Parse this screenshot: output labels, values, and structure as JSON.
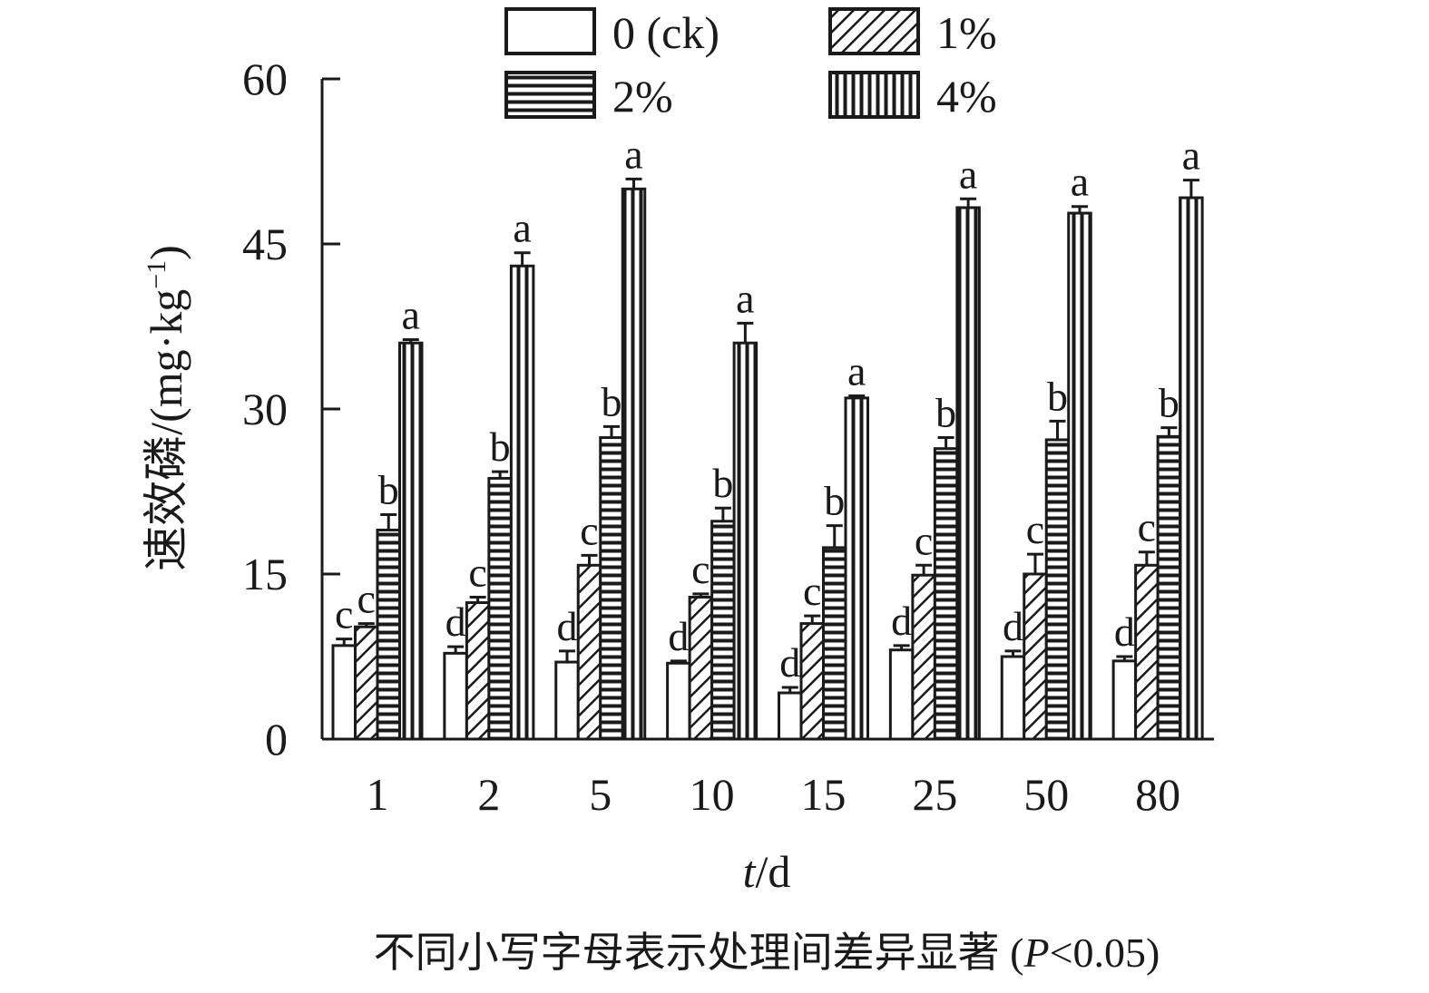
{
  "chart_data": {
    "type": "bar",
    "xlabel_italic": "t",
    "xlabel_unit": "/d",
    "ylabel": "速效磷/(mg·kg",
    "ylabel_sup": "−1",
    "ylabel_close": ")",
    "ylim": [
      0,
      60
    ],
    "yticks": [
      0,
      15,
      30,
      45,
      60
    ],
    "categories": [
      "1",
      "2",
      "5",
      "10",
      "15",
      "25",
      "50",
      "80"
    ],
    "series": [
      {
        "name": "0 (ck)",
        "pattern": "none",
        "values": [
          8.5,
          7.8,
          7.0,
          6.9,
          4.2,
          8.1,
          7.5,
          7.1
        ],
        "errors": [
          0.6,
          0.6,
          1.0,
          0.2,
          0.5,
          0.4,
          0.5,
          0.4
        ],
        "letters": [
          "c",
          "d",
          "d",
          "d",
          "d",
          "d",
          "d",
          "d"
        ]
      },
      {
        "name": "1%",
        "pattern": "diag",
        "values": [
          10.2,
          12.4,
          15.8,
          12.9,
          10.5,
          14.9,
          15.0,
          15.8
        ],
        "errors": [
          0.3,
          0.5,
          0.9,
          0.3,
          0.7,
          0.9,
          1.8,
          1.2
        ],
        "letters": [
          "c",
          "c",
          "c",
          "c",
          "c",
          "c",
          "c",
          "c"
        ]
      },
      {
        "name": "2%",
        "pattern": "horiz",
        "values": [
          19.0,
          23.7,
          27.4,
          19.8,
          17.4,
          26.4,
          27.2,
          27.5
        ],
        "errors": [
          1.4,
          0.6,
          1.0,
          1.2,
          2.0,
          1.0,
          1.7,
          0.8
        ],
        "letters": [
          "b",
          "b",
          "b",
          "b",
          "b",
          "b",
          "b",
          "b"
        ]
      },
      {
        "name": "4%",
        "pattern": "vert",
        "values": [
          36.0,
          43.0,
          50.0,
          36.0,
          31.0,
          48.3,
          47.8,
          49.2
        ],
        "errors": [
          0.3,
          1.2,
          0.9,
          1.8,
          0.2,
          0.8,
          0.6,
          1.6
        ],
        "letters": [
          "a",
          "a",
          "a",
          "a",
          "a",
          "a",
          "a",
          "a"
        ]
      }
    ],
    "legend_position": "top",
    "grid": false
  },
  "note_text": "不同小写字母表示处理间差异显著 (",
  "note_p": "P",
  "note_tail": "<0.05)"
}
